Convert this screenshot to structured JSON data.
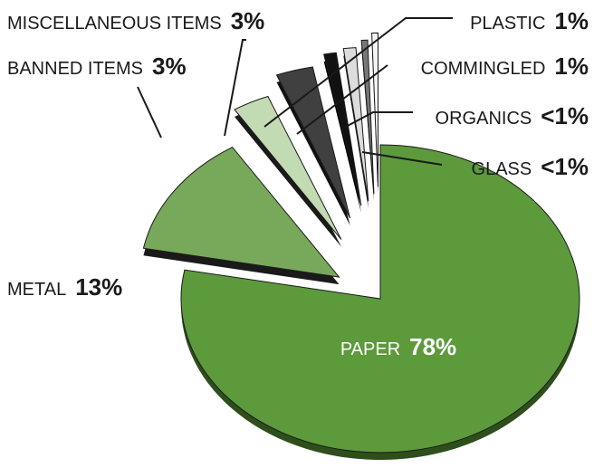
{
  "chart_data": {
    "type": "pie",
    "title": "",
    "slices": [
      {
        "label": "PAPER",
        "value_label": "78%",
        "value": 78,
        "color": "#5c9a3c",
        "side": "#2e4f1c"
      },
      {
        "label": "METAL",
        "value_label": "13%",
        "value": 13,
        "color": "#78a85a",
        "side": "#1a1a1a"
      },
      {
        "label": "BANNED ITEMS",
        "value_label": "3%",
        "value": 3,
        "color": "#c3dbb3",
        "side": "#1a1a1a"
      },
      {
        "label": "MISCELLANEOUS ITEMS",
        "value_label": "3%",
        "value": 3,
        "color": "#404040",
        "side": "#111111"
      },
      {
        "label": "PLASTIC",
        "value_label": "1%",
        "value": 1,
        "color": "#111111",
        "side": "#000000"
      },
      {
        "label": "COMMINGLED",
        "value_label": "1%",
        "value": 1,
        "color": "#dddddd",
        "side": "#1a1a1a"
      },
      {
        "label": "ORGANICS",
        "value_label": "<1%",
        "value": 0.5,
        "color": "#777777",
        "side": "#1a1a1a"
      },
      {
        "label": "GLASS",
        "value_label": "<1%",
        "value": 0.5,
        "color": "#f4f4f4",
        "side": "#1a1a1a"
      }
    ]
  }
}
